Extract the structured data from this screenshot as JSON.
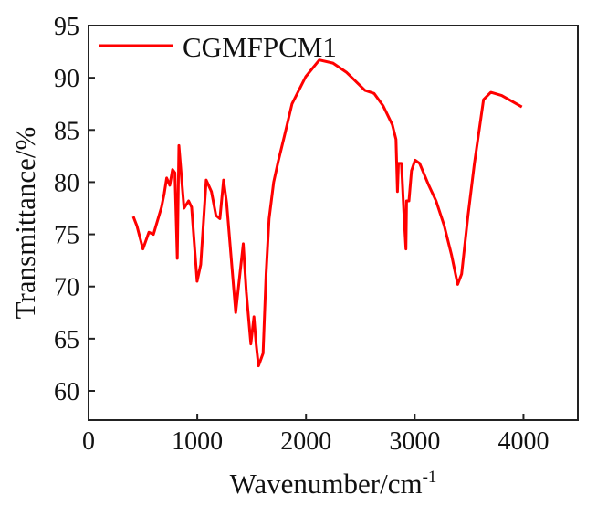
{
  "chart_data": {
    "type": "line",
    "title": "",
    "xlabel": "Wavenumber/cm",
    "xlabel_superscript": "-1",
    "ylabel": "Transmittance/%",
    "xlim": [
      0,
      4500
    ],
    "ylim": [
      57.2,
      95
    ],
    "xticks": [
      0,
      1000,
      2000,
      3000,
      4000
    ],
    "yticks": [
      60,
      65,
      70,
      75,
      80,
      85,
      90,
      95
    ],
    "grid": false,
    "legend_position": "top-left",
    "series": [
      {
        "name": "CGMFPCM1",
        "color": "#ff0000",
        "x": [
          411,
          445,
          500,
          555,
          597,
          671,
          696,
          719,
          747,
          772,
          794,
          816,
          831,
          878,
          920,
          948,
          998,
          1032,
          1082,
          1130,
          1172,
          1208,
          1242,
          1270,
          1353,
          1395,
          1423,
          1451,
          1493,
          1521,
          1541,
          1563,
          1605,
          1633,
          1661,
          1703,
          1745,
          1801,
          1871,
          1997,
          2122,
          2248,
          2374,
          2542,
          2626,
          2710,
          2794,
          2828,
          2841,
          2850,
          2878,
          2900,
          2919,
          2925,
          2947,
          2970,
          3003,
          3045,
          3129,
          3196,
          3269,
          3339,
          3395,
          3431,
          3490,
          3549,
          3633,
          3700,
          3800,
          3985
        ],
        "y": [
          76.7,
          75.8,
          73.6,
          75.2,
          75.0,
          77.6,
          78.9,
          80.4,
          79.7,
          81.2,
          80.9,
          72.7,
          83.5,
          77.5,
          78.2,
          77.6,
          70.5,
          72.1,
          80.2,
          79.1,
          76.8,
          76.5,
          80.2,
          78.0,
          67.5,
          71.5,
          74.1,
          69.5,
          64.5,
          67.1,
          64.5,
          62.4,
          63.6,
          71.2,
          76.5,
          80.0,
          82.0,
          84.4,
          87.5,
          90.1,
          91.7,
          91.4,
          90.5,
          88.8,
          88.5,
          87.3,
          85.5,
          84.1,
          79.1,
          81.8,
          81.8,
          77.1,
          73.6,
          78.2,
          78.2,
          81.1,
          82.1,
          81.8,
          79.7,
          78.2,
          75.9,
          73.0,
          70.2,
          71.2,
          76.8,
          81.8,
          87.9,
          88.6,
          88.3,
          87.2
        ]
      }
    ]
  }
}
